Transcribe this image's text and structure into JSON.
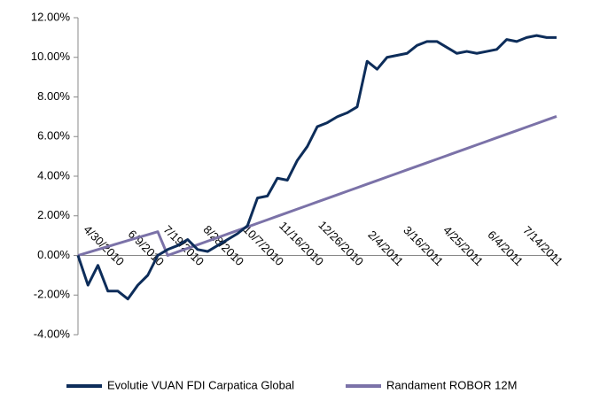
{
  "chart_data": {
    "type": "line",
    "categories": [
      null,
      null,
      null,
      null,
      "4/30/2010",
      null,
      null,
      null,
      "6/9/2010",
      null,
      null,
      null,
      "7/19/2010",
      null,
      null,
      null,
      "8/28/2010",
      null,
      null,
      null,
      "10/7/2010",
      null,
      null,
      null,
      "11/16/2010",
      null,
      null,
      null,
      "12/26/2010",
      null,
      null,
      null,
      "2/4/2011",
      null,
      null,
      null,
      "3/16/2011",
      null,
      null,
      null,
      "4/25/2011",
      null,
      null,
      null,
      "6/4/2011",
      null,
      null,
      null,
      "7/14/2011"
    ],
    "series": [
      {
        "name": "Evolutie VUAN FDI Carpatica Global",
        "color": "#0d2d5a",
        "values": [
          0.0,
          -1.5,
          -0.5,
          -1.8,
          -1.8,
          -2.2,
          -1.5,
          -1.0,
          0.0,
          0.3,
          0.5,
          0.8,
          0.3,
          0.2,
          0.5,
          0.8,
          1.1,
          1.5,
          2.9,
          3.0,
          3.9,
          3.8,
          4.8,
          5.5,
          6.5,
          6.7,
          7.0,
          7.2,
          7.5,
          9.8,
          9.4,
          10.0,
          10.1,
          10.2,
          10.6,
          10.8,
          10.8,
          10.5,
          10.2,
          10.3,
          10.2,
          10.3,
          10.4,
          10.9,
          10.8,
          11.0,
          11.1,
          11.0,
          11.0
        ]
      },
      {
        "name": "Randament ROBOR 12M",
        "color": "#7b72a8",
        "values": [
          0.0,
          0.15,
          0.3,
          0.45,
          0.6,
          0.75,
          0.9,
          1.05,
          1.2,
          0.0,
          0.18,
          0.36,
          0.54,
          0.72,
          0.9,
          1.08,
          1.26,
          1.44,
          1.62,
          1.8,
          1.98,
          2.16,
          2.34,
          2.52,
          2.7,
          2.88,
          3.06,
          3.24,
          3.42,
          3.6,
          3.78,
          3.96,
          4.14,
          4.32,
          4.5,
          4.68,
          4.86,
          5.04,
          5.22,
          5.4,
          5.58,
          5.76,
          5.94,
          6.12,
          6.3,
          6.48,
          6.66,
          6.84,
          7.02
        ]
      }
    ],
    "ylim": [
      -4,
      12
    ],
    "yticks": [
      {
        "value": -4,
        "label": "-4.00%"
      },
      {
        "value": -2,
        "label": "-2.00%"
      },
      {
        "value": 0,
        "label": "0.00%"
      },
      {
        "value": 2,
        "label": "2.00%"
      },
      {
        "value": 4,
        "label": "4.00%"
      },
      {
        "value": 6,
        "label": "6.00%"
      },
      {
        "value": 8,
        "label": "8.00%"
      },
      {
        "value": 10,
        "label": "10.00%"
      },
      {
        "value": 12,
        "label": "12.00%"
      }
    ],
    "grid": false,
    "legend": "bottom"
  }
}
